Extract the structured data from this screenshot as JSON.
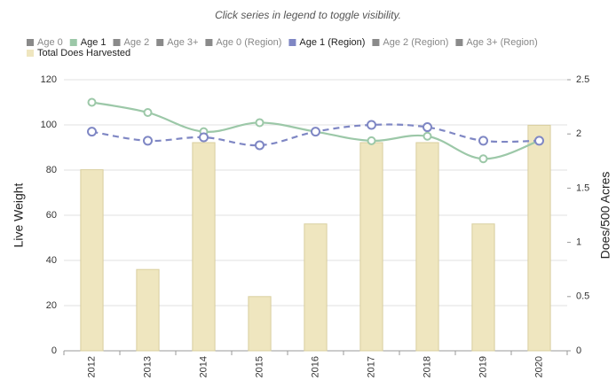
{
  "chart_data": {
    "type": "combo",
    "subtitle": "Click series in legend to toggle visibility.",
    "y_label": "Live Weight",
    "y2_label": "Does/500 Acres",
    "categories": [
      "2012",
      "2013",
      "2014",
      "2015",
      "2016",
      "2017",
      "2018",
      "2019",
      "2020"
    ],
    "ylim": [
      0,
      120
    ],
    "yticks": [
      0,
      20,
      40,
      60,
      80,
      100,
      120
    ],
    "y2lim": [
      0,
      2.5
    ],
    "y2ticks": [
      0,
      0.5,
      1,
      1.5,
      2,
      2.5
    ],
    "grid": true,
    "series": [
      {
        "name": "Age 0",
        "color": "#9a9a9a",
        "visible": false
      },
      {
        "name": "Age 1",
        "color": "#9cc8a8",
        "visible": true,
        "type": "line",
        "values": [
          110,
          105.5,
          97,
          101,
          97,
          93,
          95,
          85,
          93
        ]
      },
      {
        "name": "Age 2",
        "color": "#9a9a9a",
        "visible": false
      },
      {
        "name": "Age 3+",
        "color": "#9a9a9a",
        "visible": false
      },
      {
        "name": "Age 0 (Region)",
        "color": "#9a9a9a",
        "visible": false
      },
      {
        "name": "Age 1 (Region)",
        "color": "#7f87c4",
        "visible": true,
        "type": "line",
        "dashed": true,
        "values": [
          97,
          93,
          94.5,
          91,
          97,
          100,
          99,
          93,
          93
        ]
      },
      {
        "name": "Age 2 (Region)",
        "color": "#9a9a9a",
        "visible": false
      },
      {
        "name": "Age 3+ (Region)",
        "color": "#9a9a9a",
        "visible": false
      },
      {
        "name": "Total Does Harvested",
        "color": "#efe6bf",
        "visible": true,
        "type": "bar",
        "axis": "y2",
        "values": [
          1.67,
          0.75,
          1.92,
          0.5,
          1.17,
          1.92,
          1.92,
          1.17,
          2.08
        ]
      }
    ]
  }
}
